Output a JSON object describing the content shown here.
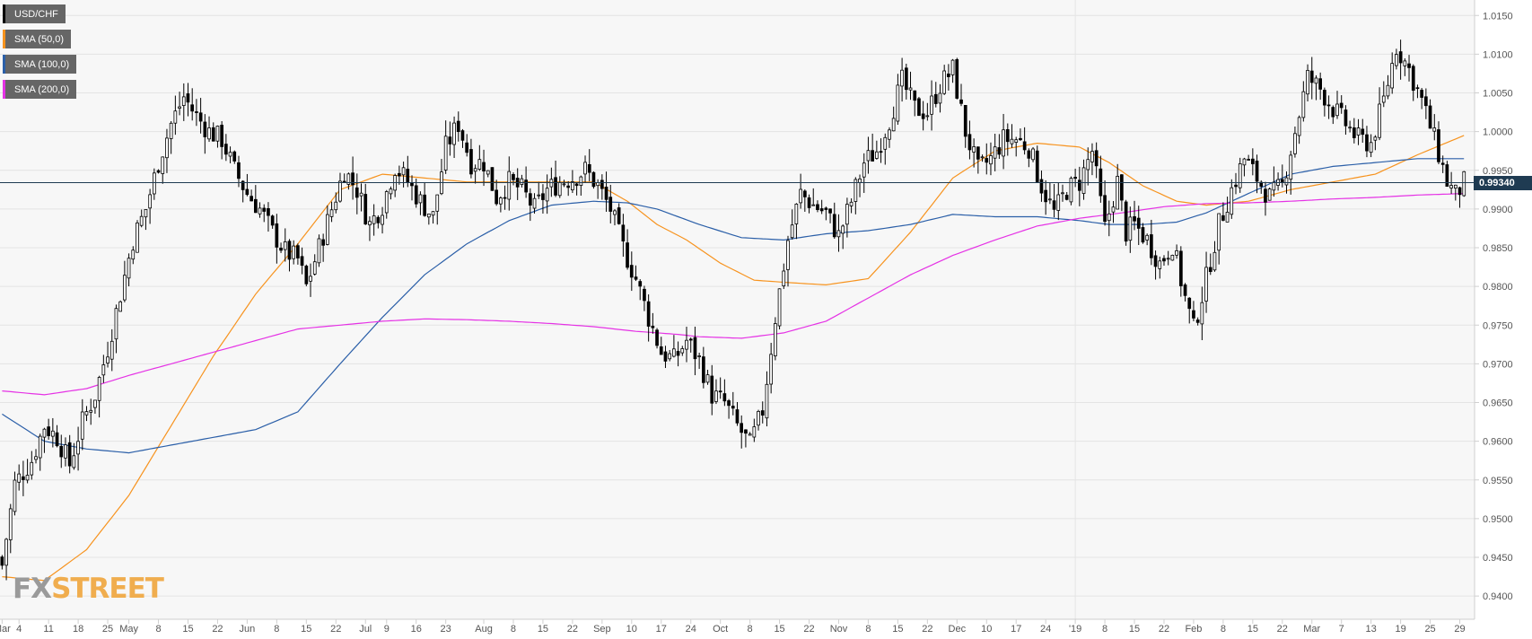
{
  "legend": [
    {
      "label": "USD/CHF",
      "color": "#000000"
    },
    {
      "label": "SMA (50,0)",
      "color": "#f7931e"
    },
    {
      "label": "SMA (100,0)",
      "color": "#2b5fa8"
    },
    {
      "label": "SMA (200,0)",
      "color": "#e532e5"
    }
  ],
  "last_price_label": "0.99340",
  "watermark": {
    "part1": "FX",
    "part2": "STREET"
  },
  "chart_data": {
    "type": "candlestick",
    "title": "",
    "pair": "USD/CHF",
    "last_price": 0.9934,
    "ylim": [
      0.937,
      1.017
    ],
    "y_ticks": [
      "0.9400",
      "0.9450",
      "0.9500",
      "0.9550",
      "0.9600",
      "0.9650",
      "0.9700",
      "0.9750",
      "0.9800",
      "0.9850",
      "0.9900",
      "0.9950",
      "1.0000",
      "1.0050",
      "1.0100",
      "1.0150"
    ],
    "x_ticks": [
      "Mar",
      "4",
      "11",
      "18",
      "25",
      "May",
      "8",
      "15",
      "22",
      "Jun",
      "8",
      "15",
      "22",
      "Jul",
      "9",
      "16",
      "23",
      "Aug",
      "8",
      "15",
      "22",
      "Sep",
      "10",
      "17",
      "24",
      "Oct",
      "8",
      "15",
      "22",
      "Nov",
      "8",
      "15",
      "22",
      "Dec",
      "10",
      "17",
      "24",
      "'19",
      "8",
      "15",
      "22",
      "Feb",
      "8",
      "15",
      "22",
      "Mar",
      "7",
      "13",
      "19",
      "25",
      "29"
    ],
    "grid": true,
    "legend_position": "top-left",
    "close_path": [
      [
        0,
        0.944
      ],
      [
        3,
        0.9545
      ],
      [
        7,
        0.9575
      ],
      [
        10,
        0.962
      ],
      [
        13,
        0.9605
      ],
      [
        16,
        0.957
      ],
      [
        19,
        0.9625
      ],
      [
        22,
        0.966
      ],
      [
        25,
        0.972
      ],
      [
        28,
        0.979
      ],
      [
        31,
        0.986
      ],
      [
        34,
        0.99
      ],
      [
        37,
        0.996
      ],
      [
        40,
        1.001
      ],
      [
        43,
        1.0045
      ],
      [
        46,
        1.002
      ],
      [
        49,
        1.0
      ],
      [
        52,
        0.999
      ],
      [
        55,
        0.995
      ],
      [
        58,
        0.992
      ],
      [
        61,
        0.99
      ],
      [
        64,
        0.987
      ],
      [
        67,
        0.9845
      ],
      [
        70,
        0.9835
      ],
      [
        72,
        0.98
      ],
      [
        75,
        0.985
      ],
      [
        78,
        0.99
      ],
      [
        81,
        0.995
      ],
      [
        84,
        0.9925
      ],
      [
        87,
        0.988
      ],
      [
        90,
        0.9905
      ],
      [
        93,
        0.9955
      ],
      [
        96,
        0.9935
      ],
      [
        99,
        0.991
      ],
      [
        102,
        0.989
      ],
      [
        105,
        0.998
      ],
      [
        108,
        1.001
      ],
      [
        111,
        0.996
      ],
      [
        114,
        0.996
      ],
      [
        117,
        0.9915
      ],
      [
        120,
        0.9935
      ],
      [
        123,
        0.9925
      ],
      [
        126,
        0.99
      ],
      [
        129,
        0.9925
      ],
      [
        132,
        0.9935
      ],
      [
        135,
        0.994
      ],
      [
        138,
        0.995
      ],
      [
        141,
        0.993
      ],
      [
        144,
        0.99
      ],
      [
        147,
        0.985
      ],
      [
        150,
        0.981
      ],
      [
        153,
        0.976
      ],
      [
        156,
        0.9715
      ],
      [
        159,
        0.9705
      ],
      [
        162,
        0.973
      ],
      [
        165,
        0.9705
      ],
      [
        168,
        0.966
      ],
      [
        171,
        0.965
      ],
      [
        174,
        0.962
      ],
      [
        177,
        0.9595
      ],
      [
        180,
        0.964
      ],
      [
        183,
        0.976
      ],
      [
        186,
        0.986
      ],
      [
        189,
        0.992
      ],
      [
        192,
        0.9905
      ],
      [
        195,
        0.9895
      ],
      [
        198,
        0.9865
      ],
      [
        201,
        0.991
      ],
      [
        204,
        0.996
      ],
      [
        207,
        0.9975
      ],
      [
        210,
        1.0015
      ],
      [
        213,
        1.0065
      ],
      [
        216,
        1.003
      ],
      [
        219,
        1.0025
      ],
      [
        222,
        1.006
      ],
      [
        225,
        1.008
      ],
      [
        228,
        1.0
      ],
      [
        231,
        0.995
      ],
      [
        234,
        0.9965
      ],
      [
        237,
        0.999
      ],
      [
        240,
        0.999
      ],
      [
        243,
        0.998
      ],
      [
        246,
        0.993
      ],
      [
        249,
        0.9895
      ],
      [
        252,
        0.9925
      ],
      [
        255,
        0.9935
      ],
      [
        258,
        0.9975
      ],
      [
        261,
        0.9875
      ],
      [
        264,
        0.9935
      ],
      [
        266,
        0.987
      ],
      [
        268,
        0.988
      ],
      [
        271,
        0.986
      ],
      [
        274,
        0.983
      ],
      [
        277,
        0.9855
      ],
      [
        280,
        0.9785
      ],
      [
        282,
        0.9745
      ],
      [
        285,
        0.981
      ],
      [
        288,
        0.988
      ],
      [
        291,
        0.9925
      ],
      [
        294,
        0.9965
      ],
      [
        297,
        0.994
      ],
      [
        300,
        0.9915
      ],
      [
        303,
        0.993
      ],
      [
        306,
        1.0
      ],
      [
        309,
        1.007
      ],
      [
        312,
        1.0055
      ],
      [
        315,
        1.003
      ],
      [
        318,
        1.001
      ],
      [
        321,
        0.999
      ],
      [
        324,
        0.9985
      ],
      [
        327,
        1.004
      ],
      [
        330,
        1.011
      ],
      [
        333,
        1.008
      ],
      [
        336,
        1.004
      ],
      [
        339,
        0.999
      ],
      [
        342,
        0.9935
      ],
      [
        344,
        0.9918
      ],
      [
        346,
        0.9934
      ]
    ],
    "sma_50_path": [
      [
        0,
        0.9425
      ],
      [
        10,
        0.942
      ],
      [
        20,
        0.946
      ],
      [
        30,
        0.953
      ],
      [
        40,
        0.962
      ],
      [
        50,
        0.971
      ],
      [
        60,
        0.979
      ],
      [
        70,
        0.9855
      ],
      [
        80,
        0.9925
      ],
      [
        90,
        0.9945
      ],
      [
        100,
        0.994
      ],
      [
        110,
        0.9935
      ],
      [
        120,
        0.9935
      ],
      [
        130,
        0.9935
      ],
      [
        140,
        0.9935
      ],
      [
        148,
        0.991
      ],
      [
        155,
        0.988
      ],
      [
        162,
        0.986
      ],
      [
        170,
        0.983
      ],
      [
        178,
        0.9808
      ],
      [
        186,
        0.9805
      ],
      [
        195,
        0.9802
      ],
      [
        205,
        0.981
      ],
      [
        215,
        0.987
      ],
      [
        225,
        0.994
      ],
      [
        235,
        0.9975
      ],
      [
        245,
        0.9985
      ],
      [
        255,
        0.998
      ],
      [
        262,
        0.996
      ],
      [
        270,
        0.993
      ],
      [
        278,
        0.991
      ],
      [
        285,
        0.9905
      ],
      [
        295,
        0.991
      ],
      [
        305,
        0.9925
      ],
      [
        315,
        0.9935
      ],
      [
        325,
        0.9945
      ],
      [
        335,
        0.997
      ],
      [
        346,
        0.9995
      ]
    ],
    "sma_100_path": [
      [
        0,
        0.9635
      ],
      [
        10,
        0.96
      ],
      [
        20,
        0.959
      ],
      [
        30,
        0.9585
      ],
      [
        40,
        0.9595
      ],
      [
        50,
        0.9605
      ],
      [
        60,
        0.9615
      ],
      [
        70,
        0.9638
      ],
      [
        80,
        0.97
      ],
      [
        90,
        0.976
      ],
      [
        100,
        0.9815
      ],
      [
        110,
        0.9855
      ],
      [
        120,
        0.9885
      ],
      [
        130,
        0.9905
      ],
      [
        140,
        0.991
      ],
      [
        148,
        0.9908
      ],
      [
        155,
        0.99
      ],
      [
        165,
        0.988
      ],
      [
        175,
        0.9863
      ],
      [
        185,
        0.986
      ],
      [
        195,
        0.9868
      ],
      [
        205,
        0.9872
      ],
      [
        215,
        0.988
      ],
      [
        225,
        0.9893
      ],
      [
        235,
        0.989
      ],
      [
        245,
        0.989
      ],
      [
        255,
        0.9885
      ],
      [
        262,
        0.988
      ],
      [
        270,
        0.988
      ],
      [
        278,
        0.9883
      ],
      [
        285,
        0.9895
      ],
      [
        295,
        0.992
      ],
      [
        305,
        0.9945
      ],
      [
        315,
        0.9955
      ],
      [
        325,
        0.996
      ],
      [
        335,
        0.9965
      ],
      [
        346,
        0.9965
      ]
    ],
    "sma_200_path": [
      [
        0,
        0.9665
      ],
      [
        10,
        0.966
      ],
      [
        20,
        0.9668
      ],
      [
        30,
        0.9685
      ],
      [
        40,
        0.97
      ],
      [
        50,
        0.9715
      ],
      [
        60,
        0.973
      ],
      [
        70,
        0.9745
      ],
      [
        80,
        0.975
      ],
      [
        90,
        0.9755
      ],
      [
        100,
        0.9758
      ],
      [
        110,
        0.9757
      ],
      [
        120,
        0.9755
      ],
      [
        130,
        0.9752
      ],
      [
        140,
        0.9748
      ],
      [
        150,
        0.9742
      ],
      [
        160,
        0.9738
      ],
      [
        165,
        0.9735
      ],
      [
        175,
        0.9733
      ],
      [
        185,
        0.974
      ],
      [
        195,
        0.9755
      ],
      [
        205,
        0.9785
      ],
      [
        215,
        0.9815
      ],
      [
        225,
        0.984
      ],
      [
        235,
        0.986
      ],
      [
        245,
        0.9878
      ],
      [
        255,
        0.9888
      ],
      [
        265,
        0.9895
      ],
      [
        275,
        0.9903
      ],
      [
        285,
        0.9907
      ],
      [
        295,
        0.9908
      ],
      [
        305,
        0.991
      ],
      [
        315,
        0.9913
      ],
      [
        325,
        0.9915
      ],
      [
        335,
        0.9918
      ],
      [
        346,
        0.992
      ]
    ]
  }
}
